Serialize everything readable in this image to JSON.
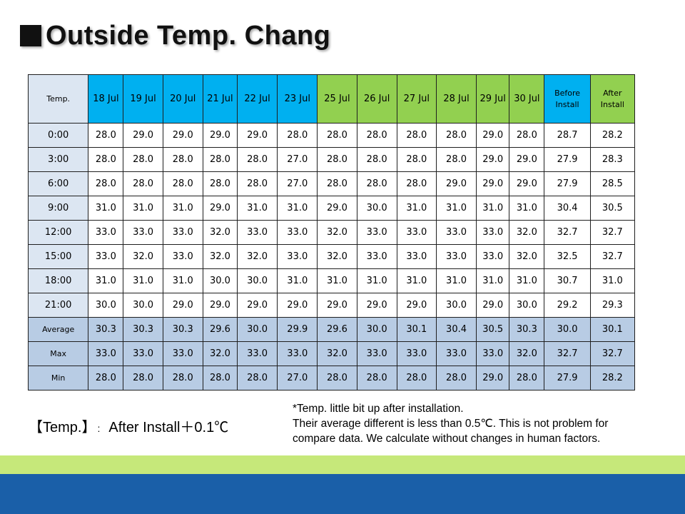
{
  "title": {
    "square": "■",
    "text": "Outside Temp. Chang"
  },
  "table": {
    "header_label": "Temp.",
    "dates_blue": [
      "18 Jul",
      "19 Jul",
      "20 Jul",
      "21 Jul",
      "22 Jul",
      "23 Jul"
    ],
    "dates_green": [
      "25 Jul",
      "26 Jul",
      "27 Jul",
      "28 Jul",
      "29 Jul",
      "30 Jul"
    ],
    "before_label": [
      "Before",
      "Install"
    ],
    "after_label": [
      "After",
      "Install"
    ],
    "rows": [
      {
        "label": "0:00",
        "values": [
          "28.0",
          "29.0",
          "29.0",
          "29.0",
          "29.0",
          "28.0",
          "28.0",
          "28.0",
          "28.0",
          "28.0",
          "29.0",
          "28.0"
        ],
        "before": "28.7",
        "after": "28.2"
      },
      {
        "label": "3:00",
        "values": [
          "28.0",
          "28.0",
          "28.0",
          "28.0",
          "28.0",
          "27.0",
          "28.0",
          "28.0",
          "28.0",
          "28.0",
          "29.0",
          "29.0"
        ],
        "before": "27.9",
        "after": "28.3"
      },
      {
        "label": "6:00",
        "values": [
          "28.0",
          "28.0",
          "28.0",
          "28.0",
          "28.0",
          "27.0",
          "28.0",
          "28.0",
          "28.0",
          "29.0",
          "29.0",
          "29.0"
        ],
        "before": "27.9",
        "after": "28.5"
      },
      {
        "label": "9:00",
        "values": [
          "31.0",
          "31.0",
          "31.0",
          "29.0",
          "31.0",
          "31.0",
          "29.0",
          "30.0",
          "31.0",
          "31.0",
          "31.0",
          "31.0"
        ],
        "before": "30.4",
        "after": "30.5"
      },
      {
        "label": "12:00",
        "values": [
          "33.0",
          "33.0",
          "33.0",
          "32.0",
          "33.0",
          "33.0",
          "32.0",
          "33.0",
          "33.0",
          "33.0",
          "33.0",
          "32.0"
        ],
        "before": "32.7",
        "after": "32.7"
      },
      {
        "label": "15:00",
        "values": [
          "33.0",
          "32.0",
          "33.0",
          "32.0",
          "32.0",
          "33.0",
          "32.0",
          "33.0",
          "33.0",
          "33.0",
          "33.0",
          "32.0"
        ],
        "before": "32.5",
        "after": "32.7"
      },
      {
        "label": "18:00",
        "values": [
          "31.0",
          "31.0",
          "31.0",
          "30.0",
          "30.0",
          "31.0",
          "31.0",
          "31.0",
          "31.0",
          "31.0",
          "31.0",
          "31.0"
        ],
        "before": "30.7",
        "after": "31.0"
      },
      {
        "label": "21:00",
        "values": [
          "30.0",
          "30.0",
          "29.0",
          "29.0",
          "29.0",
          "29.0",
          "29.0",
          "29.0",
          "29.0",
          "30.0",
          "29.0",
          "30.0"
        ],
        "before": "29.2",
        "after": "29.3"
      }
    ],
    "stats": [
      {
        "label": "Average",
        "values": [
          "30.3",
          "30.3",
          "30.3",
          "29.6",
          "30.0",
          "29.9",
          "29.6",
          "30.0",
          "30.1",
          "30.4",
          "30.5",
          "30.3"
        ],
        "before": "30.0",
        "after": "30.1"
      },
      {
        "label": "Max",
        "values": [
          "33.0",
          "33.0",
          "33.0",
          "32.0",
          "33.0",
          "33.0",
          "32.0",
          "33.0",
          "33.0",
          "33.0",
          "33.0",
          "32.0"
        ],
        "before": "32.7",
        "after": "32.7"
      },
      {
        "label": "Min",
        "values": [
          "28.0",
          "28.0",
          "28.0",
          "28.0",
          "28.0",
          "27.0",
          "28.0",
          "28.0",
          "28.0",
          "28.0",
          "29.0",
          "28.0"
        ],
        "before": "27.9",
        "after": "28.2"
      }
    ]
  },
  "summary": {
    "key": "【Temp.】",
    "sep": ":",
    "value": "After Install＋0.1℃"
  },
  "note": {
    "lines": [
      "*Temp. little bit up after installation.",
      "Their average  different is less than 0.5℃. This is not problem for",
      "compare data. We calculate without changes in human factors."
    ]
  },
  "colors": {
    "blue_header": "#00b0f0",
    "green_header": "#92d050",
    "label_cell": "#dce6f2",
    "stat_row": "#b8cce4",
    "band_green": "#c6e87a",
    "band_blue": "#1a5fa8"
  }
}
